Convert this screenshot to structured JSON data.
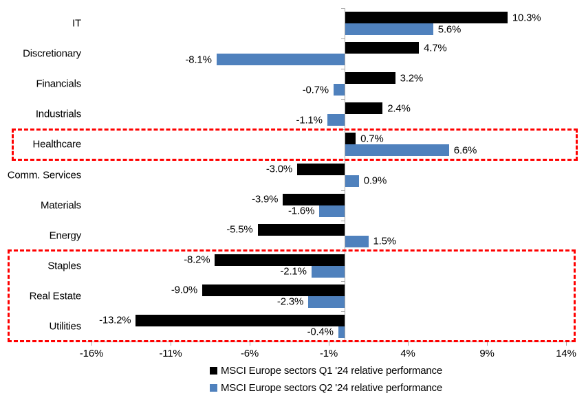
{
  "chart_data": {
    "type": "bar",
    "orientation": "horizontal",
    "title": "",
    "categories": [
      "IT",
      "Discretionary",
      "Financials",
      "Industrials",
      "Healthcare",
      "Comm. Services",
      "Materials",
      "Energy",
      "Staples",
      "Real Estate",
      "Utilities"
    ],
    "series": [
      {
        "name": "MSCI Europe sectors Q1 '24 relative performance",
        "key": "q1",
        "color": "#000000",
        "values": [
          10.3,
          4.7,
          3.2,
          2.4,
          0.7,
          -3.0,
          -3.9,
          -5.5,
          -8.2,
          -9.0,
          -13.2
        ]
      },
      {
        "name": "MSCI Europe sectors Q2 '24 relative performance",
        "key": "q2",
        "color": "#4f81bd",
        "values": [
          5.6,
          -8.1,
          -0.7,
          -1.1,
          6.6,
          0.9,
          -1.6,
          1.5,
          -2.1,
          -2.3,
          -0.4
        ]
      }
    ],
    "value_labels": {
      "q1": [
        "10.3%",
        "4.7%",
        "3.2%",
        "2.4%",
        "0.7%",
        "-3.0%",
        "-3.9%",
        "-5.5%",
        "-8.2%",
        "-9.0%",
        "-13.2%"
      ],
      "q2": [
        "5.6%",
        "-8.1%",
        "-0.7%",
        "-1.1%",
        "6.6%",
        "0.9%",
        "-1.6%",
        "1.5%",
        "-2.1%",
        "-2.3%",
        "-0.4%"
      ]
    },
    "x_axis": {
      "unit": "%",
      "min": -16,
      "max": 14,
      "tick_values": [
        -16,
        -11,
        -6,
        -1,
        4,
        9,
        14
      ],
      "tick_labels": [
        "-16%",
        "-11%",
        "-6%",
        "-1%",
        "4%",
        "9%",
        "14%"
      ]
    },
    "grid": false,
    "legend_position": "bottom",
    "axis_color": "#a6a6a6",
    "highlight_color": "#ff0000",
    "highlights": [
      {
        "style": "red-dashed-box",
        "from_category": "Healthcare",
        "to_category": "Healthcare"
      },
      {
        "style": "red-dashed-box",
        "from_category": "Staples",
        "to_category": "Utilities"
      }
    ]
  }
}
